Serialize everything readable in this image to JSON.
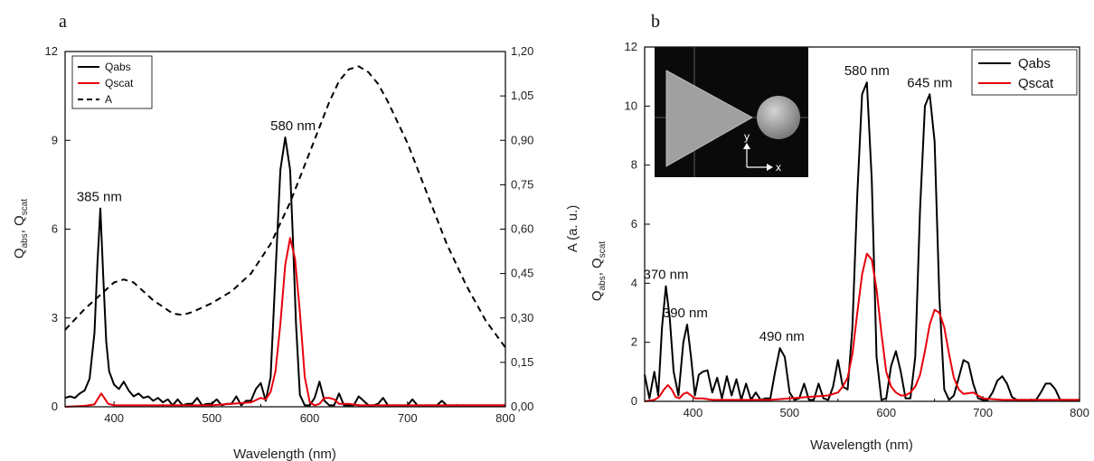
{
  "chart_data": [
    {
      "panel": "a",
      "type": "line",
      "xlabel": "Wavelength (nm)",
      "ylabel_main": "Q",
      "ylabel_sub1": "abs",
      "ylabel_sep": ", Q",
      "ylabel_sub2": "scat",
      "y2label": "A (a. u.)",
      "xlim": [
        350,
        800
      ],
      "ylim": [
        0,
        12
      ],
      "y2lim": [
        0,
        1.2
      ],
      "xticks": [
        400,
        500,
        600,
        700,
        800
      ],
      "yticks": [
        0,
        3,
        6,
        9,
        12
      ],
      "y2ticks": [
        "0,00",
        "0,15",
        "0,30",
        "0,45",
        "0,60",
        "0,75",
        "0,90",
        "1,05",
        "1,20"
      ],
      "legend_position": "top-left",
      "annotations": [
        {
          "text": "385 nm",
          "x": 385,
          "y": 6.7
        },
        {
          "text": "580 nm",
          "x": 583,
          "y": 9.1
        }
      ],
      "series": [
        {
          "name": "Qabs",
          "color": "#000000",
          "style": "solid",
          "axis": "left",
          "x": [
            350,
            355,
            360,
            365,
            370,
            375,
            380,
            383,
            386,
            389,
            392,
            395,
            400,
            405,
            410,
            415,
            420,
            425,
            430,
            435,
            440,
            445,
            450,
            455,
            460,
            465,
            470,
            475,
            480,
            485,
            490,
            495,
            500,
            505,
            510,
            515,
            520,
            525,
            530,
            535,
            540,
            545,
            550,
            555,
            560,
            565,
            570,
            575,
            580,
            583,
            586,
            590,
            595,
            600,
            605,
            610,
            615,
            620,
            625,
            630,
            635,
            640,
            645,
            650,
            655,
            660,
            665,
            670,
            675,
            680,
            685,
            690,
            695,
            700,
            705,
            710,
            715,
            720,
            725,
            730,
            735,
            740,
            745,
            750,
            755,
            760,
            765,
            770,
            775,
            780,
            785,
            790,
            795,
            800
          ],
          "y": [
            0.3,
            0.35,
            0.3,
            0.45,
            0.55,
            0.95,
            2.5,
            4.8,
            6.7,
            4.4,
            2.2,
            1.2,
            0.75,
            0.6,
            0.85,
            0.55,
            0.35,
            0.45,
            0.3,
            0.35,
            0.2,
            0.3,
            0.15,
            0.25,
            0.05,
            0.25,
            0.05,
            0.1,
            0.1,
            0.3,
            0.05,
            0.1,
            0.1,
            0.25,
            0.05,
            0.1,
            0.1,
            0.35,
            0.05,
            0.2,
            0.2,
            0.6,
            0.8,
            0.2,
            1.0,
            4.5,
            8.0,
            9.1,
            8.0,
            5.5,
            2.8,
            0.4,
            0.05,
            0.05,
            0.3,
            0.85,
            0.2,
            0.05,
            0.05,
            0.45,
            0.05,
            0.05,
            0.05,
            0.35,
            0.2,
            0.05,
            0.05,
            0.1,
            0.3,
            0.05,
            0.05,
            0.05,
            0.05,
            0.05,
            0.25,
            0.05,
            0.05,
            0.05,
            0.05,
            0.05,
            0.2,
            0.05,
            0.05,
            0.05,
            0.05,
            0.05,
            0.05,
            0.05,
            0.05,
            0.05,
            0.05,
            0.05,
            0.05,
            0.05
          ]
        },
        {
          "name": "Qscat",
          "color": "#e8000b",
          "style": "solid",
          "axis": "left",
          "x": [
            350,
            370,
            380,
            384,
            387,
            390,
            394,
            400,
            420,
            440,
            460,
            480,
            500,
            520,
            540,
            550,
            555,
            560,
            565,
            570,
            575,
            580,
            585,
            590,
            595,
            600,
            605,
            610,
            615,
            620,
            625,
            630,
            640,
            650,
            660,
            680,
            700,
            750,
            800
          ],
          "y": [
            0,
            0.03,
            0.08,
            0.3,
            0.45,
            0.3,
            0.1,
            0.05,
            0.05,
            0.05,
            0.05,
            0.05,
            0.05,
            0.1,
            0.15,
            0.3,
            0.25,
            0.5,
            1.2,
            2.8,
            4.8,
            5.7,
            5.0,
            3.2,
            1.0,
            0.15,
            0.05,
            0.1,
            0.3,
            0.3,
            0.25,
            0.1,
            0.1,
            0.05,
            0.05,
            0.05,
            0.05,
            0.05,
            0.05
          ]
        },
        {
          "name": "A",
          "color": "#000000",
          "style": "dashed",
          "axis": "right",
          "x": [
            350,
            370,
            390,
            400,
            410,
            420,
            440,
            460,
            470,
            480,
            500,
            520,
            540,
            560,
            580,
            600,
            620,
            630,
            640,
            650,
            660,
            670,
            680,
            700,
            720,
            740,
            760,
            780,
            800
          ],
          "y": [
            0.26,
            0.33,
            0.39,
            0.42,
            0.43,
            0.42,
            0.36,
            0.315,
            0.31,
            0.32,
            0.35,
            0.39,
            0.45,
            0.55,
            0.69,
            0.86,
            1.03,
            1.1,
            1.14,
            1.15,
            1.13,
            1.09,
            1.03,
            0.89,
            0.72,
            0.55,
            0.41,
            0.29,
            0.2
          ]
        }
      ]
    },
    {
      "panel": "b",
      "type": "line",
      "xlabel": "Wavelength (nm)",
      "ylabel_main": "Q",
      "ylabel_sub1": "abs",
      "ylabel_sep": ", Q",
      "ylabel_sub2": "scat",
      "xlim": [
        350,
        800
      ],
      "ylim": [
        0,
        12
      ],
      "xticks": [
        400,
        500,
        600,
        700,
        800
      ],
      "yticks": [
        0,
        2,
        4,
        6,
        8,
        10,
        12
      ],
      "legend_position": "top-right",
      "inset": {
        "description_labels": {
          "y": "y",
          "x": "x"
        }
      },
      "annotations": [
        {
          "text": "370 nm",
          "x": 372,
          "y": 3.9
        },
        {
          "text": "390 nm",
          "x": 392,
          "y": 2.6
        },
        {
          "text": "490 nm",
          "x": 492,
          "y": 1.8
        },
        {
          "text": "580 nm",
          "x": 580,
          "y": 10.8
        },
        {
          "text": "645 nm",
          "x": 645,
          "y": 10.4
        }
      ],
      "series": [
        {
          "name": "Qabs",
          "color": "#000000",
          "x": [
            350,
            355,
            360,
            364,
            368,
            372,
            376,
            380,
            385,
            390,
            394,
            398,
            402,
            406,
            410,
            415,
            420,
            425,
            430,
            435,
            440,
            445,
            450,
            455,
            460,
            465,
            470,
            475,
            480,
            485,
            490,
            495,
            500,
            505,
            510,
            515,
            520,
            525,
            530,
            535,
            540,
            545,
            550,
            555,
            560,
            565,
            570,
            575,
            580,
            585,
            590,
            595,
            600,
            605,
            610,
            615,
            620,
            625,
            630,
            635,
            640,
            645,
            650,
            655,
            660,
            665,
            670,
            675,
            680,
            685,
            690,
            695,
            700,
            705,
            710,
            715,
            720,
            725,
            730,
            735,
            740,
            745,
            750,
            755,
            760,
            765,
            770,
            775,
            780,
            790,
            800
          ],
          "y": [
            0.9,
            0.1,
            1.0,
            0.2,
            2.5,
            3.9,
            2.8,
            1.0,
            0.2,
            2.0,
            2.6,
            1.5,
            0.2,
            0.9,
            1.0,
            1.05,
            0.3,
            0.8,
            0.1,
            0.85,
            0.2,
            0.75,
            0.05,
            0.6,
            0.05,
            0.3,
            0.05,
            0.1,
            0.1,
            1.0,
            1.8,
            1.5,
            0.3,
            0.05,
            0.1,
            0.6,
            0.05,
            0.05,
            0.6,
            0.1,
            0.05,
            0.5,
            1.4,
            0.5,
            0.4,
            2.5,
            7.0,
            10.4,
            10.8,
            7.5,
            1.5,
            0.05,
            0.1,
            1.2,
            1.7,
            1.0,
            0.1,
            0.1,
            1.5,
            6.5,
            10.0,
            10.4,
            8.8,
            3.5,
            0.4,
            0.05,
            0.2,
            0.8,
            1.4,
            1.3,
            0.6,
            0.1,
            0.05,
            0.05,
            0.3,
            0.7,
            0.85,
            0.6,
            0.15,
            0.05,
            0.05,
            0.05,
            0.05,
            0.05,
            0.3,
            0.6,
            0.6,
            0.4,
            0.05,
            0.05,
            0.05
          ]
        },
        {
          "name": "Qscat",
          "color": "#e8000b",
          "x": [
            350,
            360,
            365,
            370,
            374,
            378,
            382,
            386,
            390,
            394,
            398,
            402,
            410,
            420,
            440,
            460,
            480,
            500,
            520,
            540,
            550,
            555,
            560,
            565,
            570,
            575,
            580,
            585,
            590,
            595,
            600,
            605,
            610,
            615,
            620,
            625,
            630,
            635,
            640,
            645,
            650,
            655,
            660,
            665,
            670,
            675,
            680,
            690,
            700,
            720,
            750,
            780,
            800
          ],
          "y": [
            0,
            0.05,
            0.15,
            0.4,
            0.55,
            0.4,
            0.15,
            0.1,
            0.25,
            0.3,
            0.2,
            0.1,
            0.1,
            0.05,
            0.05,
            0.05,
            0.05,
            0.1,
            0.15,
            0.2,
            0.3,
            0.5,
            0.8,
            1.6,
            3.0,
            4.3,
            5.0,
            4.8,
            3.8,
            2.3,
            1.0,
            0.5,
            0.3,
            0.2,
            0.2,
            0.3,
            0.5,
            0.9,
            1.7,
            2.6,
            3.1,
            3.0,
            2.5,
            1.6,
            0.8,
            0.4,
            0.25,
            0.3,
            0.1,
            0.05,
            0.05,
            0.05,
            0.05
          ]
        }
      ]
    }
  ]
}
